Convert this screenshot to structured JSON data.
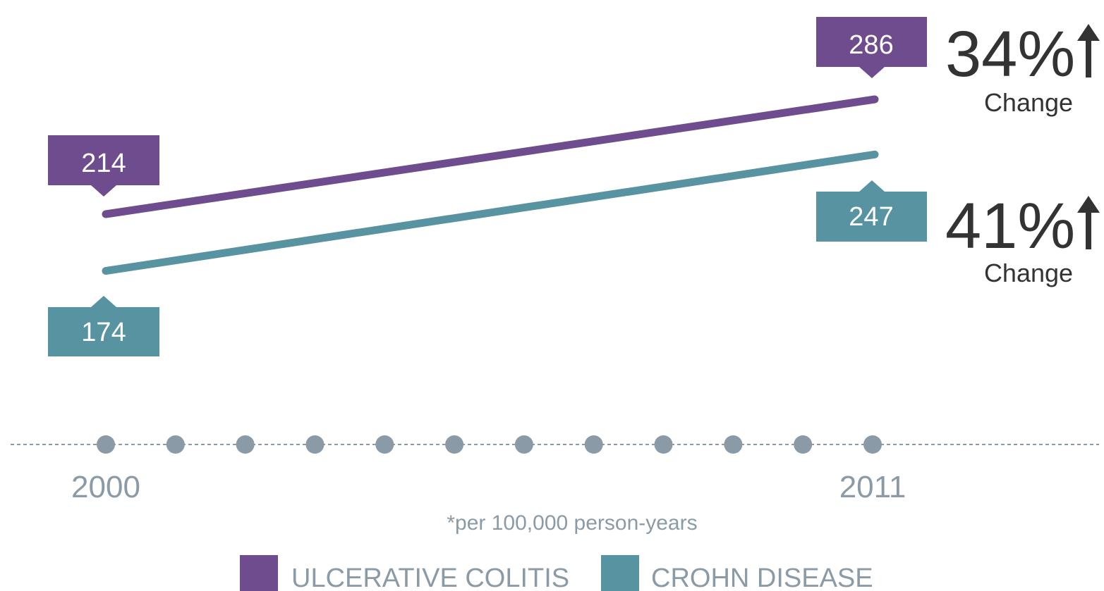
{
  "chart_data": {
    "type": "line",
    "x": [
      2000,
      2001,
      2002,
      2003,
      2004,
      2005,
      2006,
      2007,
      2008,
      2009,
      2010,
      2011
    ],
    "tick_labels": [
      "2000",
      "2011"
    ],
    "series": [
      {
        "name": "ULCERATIVE COLITIS",
        "x": [
          2000,
          2011
        ],
        "values": [
          214,
          286
        ],
        "labels": [
          "214",
          "286"
        ],
        "change": "34%",
        "change_label": "Change",
        "color": "#6e4c8e"
      },
      {
        "name": "CROHN DISEASE",
        "x": [
          2000,
          2011
        ],
        "values": [
          174,
          247
        ],
        "labels": [
          "174",
          "247"
        ],
        "change": "41%",
        "change_label": "Change",
        "color": "#5793a0"
      }
    ],
    "footnote": "*per 100,000 person-years",
    "legend_position": "bottom",
    "grid": false
  },
  "colors": {
    "axis": "#8a9ba7",
    "text": "#333333"
  }
}
